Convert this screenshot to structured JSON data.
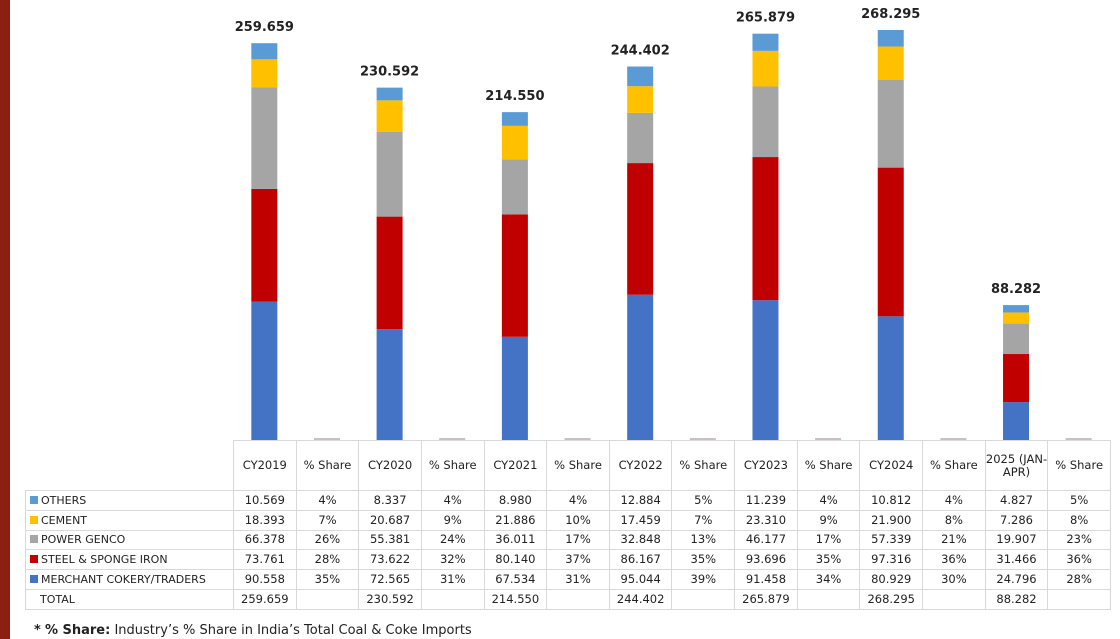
{
  "chart_data": {
    "type": "stacked_bar",
    "categories": [
      "CY2019",
      "CY2020",
      "CY2021",
      "CY2022",
      "CY2023",
      "CY2024",
      "2025 (JAN-APR)"
    ],
    "share_header": "% Share",
    "total_label": "TOTAL",
    "series": [
      {
        "name": "MERCHANT COKERY/TRADERS",
        "color": "#4472c4",
        "values": [
          90.558,
          72.565,
          67.534,
          95.044,
          91.458,
          80.929,
          24.796
        ],
        "value_labels": [
          "90.558",
          "72.565",
          "67.534",
          "95.044",
          "91.458",
          "80.929",
          "24.796"
        ],
        "shares": [
          35,
          31,
          31,
          39,
          34,
          30,
          28
        ],
        "share_labels": [
          "35%",
          "31%",
          "31%",
          "39%",
          "34%",
          "30%",
          "28%"
        ]
      },
      {
        "name": "STEEL & SPONGE IRON",
        "color": "#c00000",
        "values": [
          73.761,
          73.622,
          80.14,
          86.167,
          93.696,
          97.316,
          31.466
        ],
        "value_labels": [
          "73.761",
          "73.622",
          "80.140",
          "86.167",
          "93.696",
          "97.316",
          "31.466"
        ],
        "shares": [
          28,
          32,
          37,
          35,
          35,
          36,
          36
        ],
        "share_labels": [
          "28%",
          "32%",
          "37%",
          "35%",
          "35%",
          "36%",
          "36%"
        ]
      },
      {
        "name": "POWER GENCO",
        "color": "#a5a5a5",
        "values": [
          66.378,
          55.381,
          36.011,
          32.848,
          46.177,
          57.339,
          19.907
        ],
        "value_labels": [
          "66.378",
          "55.381",
          "36.011",
          "32.848",
          "46.177",
          "57.339",
          "19.907"
        ],
        "shares": [
          26,
          24,
          17,
          13,
          17,
          21,
          23
        ],
        "share_labels": [
          "26%",
          "24%",
          "17%",
          "13%",
          "17%",
          "21%",
          "23%"
        ]
      },
      {
        "name": "CEMENT",
        "color": "#ffc000",
        "values": [
          18.393,
          20.687,
          21.886,
          17.459,
          23.31,
          21.9,
          7.286
        ],
        "value_labels": [
          "18.393",
          "20.687",
          "21.886",
          "17.459",
          "23.310",
          "21.900",
          "7.286"
        ],
        "shares": [
          7,
          9,
          10,
          7,
          9,
          8,
          8
        ],
        "share_labels": [
          "7%",
          "9%",
          "10%",
          "7%",
          "9%",
          "8%",
          "8%"
        ]
      },
      {
        "name": "OTHERS",
        "color": "#5b9bd5",
        "values": [
          10.569,
          8.337,
          8.98,
          12.884,
          11.239,
          10.812,
          4.827
        ],
        "value_labels": [
          "10.569",
          "8.337",
          "8.980",
          "12.884",
          "11.239",
          "10.812",
          "4.827"
        ],
        "shares": [
          4,
          4,
          4,
          5,
          4,
          4,
          5
        ],
        "share_labels": [
          "4%",
          "4%",
          "4%",
          "5%",
          "4%",
          "4%",
          "5%"
        ]
      }
    ],
    "totals": [
      259.659,
      230.592,
      214.55,
      244.402,
      265.879,
      268.295,
      88.282
    ],
    "total_labels": [
      "259.659",
      "230.592",
      "214.550",
      "244.402",
      "265.879",
      "268.295",
      "88.282"
    ],
    "footnote_marker": "*",
    "footnote_label": "% Share:",
    "footnote_text": "Industry’s % Share in India’s Total Coal & Coke Imports"
  }
}
